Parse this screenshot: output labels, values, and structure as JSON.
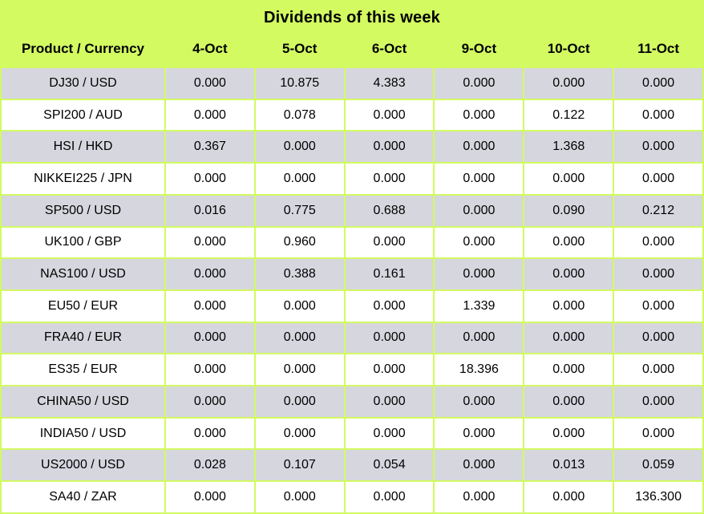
{
  "title": "Dividends of this week",
  "table": {
    "product_header": "Product / Currency",
    "date_headers": [
      "4-Oct",
      "5-Oct",
      "6-Oct",
      "9-Oct",
      "10-Oct",
      "11-Oct"
    ],
    "rows": [
      {
        "product": "DJ30 / USD",
        "values": [
          "0.000",
          "10.875",
          "4.383",
          "0.000",
          "0.000",
          "0.000"
        ]
      },
      {
        "product": "SPI200 / AUD",
        "values": [
          "0.000",
          "0.078",
          "0.000",
          "0.000",
          "0.122",
          "0.000"
        ]
      },
      {
        "product": "HSI / HKD",
        "values": [
          "0.367",
          "0.000",
          "0.000",
          "0.000",
          "1.368",
          "0.000"
        ]
      },
      {
        "product": "NIKKEI225 / JPN",
        "values": [
          "0.000",
          "0.000",
          "0.000",
          "0.000",
          "0.000",
          "0.000"
        ]
      },
      {
        "product": "SP500 / USD",
        "values": [
          "0.016",
          "0.775",
          "0.688",
          "0.000",
          "0.090",
          "0.212"
        ]
      },
      {
        "product": "UK100 / GBP",
        "values": [
          "0.000",
          "0.960",
          "0.000",
          "0.000",
          "0.000",
          "0.000"
        ]
      },
      {
        "product": "NAS100 / USD",
        "values": [
          "0.000",
          "0.388",
          "0.161",
          "0.000",
          "0.000",
          "0.000"
        ]
      },
      {
        "product": "EU50 / EUR",
        "values": [
          "0.000",
          "0.000",
          "0.000",
          "1.339",
          "0.000",
          "0.000"
        ]
      },
      {
        "product": "FRA40 / EUR",
        "values": [
          "0.000",
          "0.000",
          "0.000",
          "0.000",
          "0.000",
          "0.000"
        ]
      },
      {
        "product": "ES35 / EUR",
        "values": [
          "0.000",
          "0.000",
          "0.000",
          "18.396",
          "0.000",
          "0.000"
        ]
      },
      {
        "product": "CHINA50 / USD",
        "values": [
          "0.000",
          "0.000",
          "0.000",
          "0.000",
          "0.000",
          "0.000"
        ]
      },
      {
        "product": "INDIA50 / USD",
        "values": [
          "0.000",
          "0.000",
          "0.000",
          "0.000",
          "0.000",
          "0.000"
        ]
      },
      {
        "product": "US2000 / USD",
        "values": [
          "0.028",
          "0.107",
          "0.054",
          "0.000",
          "0.013",
          "0.059"
        ]
      },
      {
        "product": "SA40 / ZAR",
        "values": [
          "0.000",
          "0.000",
          "0.000",
          "0.000",
          "0.000",
          "136.300"
        ]
      }
    ]
  },
  "colors": {
    "background_green": "#D3FA61",
    "row_alt_gray": "#D6D6DE",
    "row_white": "#FFFFFF",
    "text": "#000000"
  },
  "chart_data": {
    "type": "table",
    "title": "Dividends of this week",
    "columns": [
      "Product / Currency",
      "4-Oct",
      "5-Oct",
      "6-Oct",
      "9-Oct",
      "10-Oct",
      "11-Oct"
    ],
    "rows": [
      [
        "DJ30 / USD",
        0.0,
        10.875,
        4.383,
        0.0,
        0.0,
        0.0
      ],
      [
        "SPI200 / AUD",
        0.0,
        0.078,
        0.0,
        0.0,
        0.122,
        0.0
      ],
      [
        "HSI / HKD",
        0.367,
        0.0,
        0.0,
        0.0,
        1.368,
        0.0
      ],
      [
        "NIKKEI225 / JPN",
        0.0,
        0.0,
        0.0,
        0.0,
        0.0,
        0.0
      ],
      [
        "SP500 / USD",
        0.016,
        0.775,
        0.688,
        0.0,
        0.09,
        0.212
      ],
      [
        "UK100 / GBP",
        0.0,
        0.96,
        0.0,
        0.0,
        0.0,
        0.0
      ],
      [
        "NAS100 / USD",
        0.0,
        0.388,
        0.161,
        0.0,
        0.0,
        0.0
      ],
      [
        "EU50 / EUR",
        0.0,
        0.0,
        0.0,
        1.339,
        0.0,
        0.0
      ],
      [
        "FRA40 / EUR",
        0.0,
        0.0,
        0.0,
        0.0,
        0.0,
        0.0
      ],
      [
        "ES35 / EUR",
        0.0,
        0.0,
        0.0,
        18.396,
        0.0,
        0.0
      ],
      [
        "CHINA50 / USD",
        0.0,
        0.0,
        0.0,
        0.0,
        0.0,
        0.0
      ],
      [
        "INDIA50 / USD",
        0.0,
        0.0,
        0.0,
        0.0,
        0.0,
        0.0
      ],
      [
        "US2000 / USD",
        0.028,
        0.107,
        0.054,
        0.0,
        0.013,
        0.059
      ],
      [
        "SA40 / ZAR",
        0.0,
        0.0,
        0.0,
        0.0,
        0.0,
        136.3
      ]
    ],
    "layout": {
      "header_background": "#D3FA61",
      "row_stripe_colors": [
        "#D6D6DE",
        "#FFFFFF"
      ],
      "gridline_color": "#D3FA61",
      "legend": "none"
    }
  }
}
